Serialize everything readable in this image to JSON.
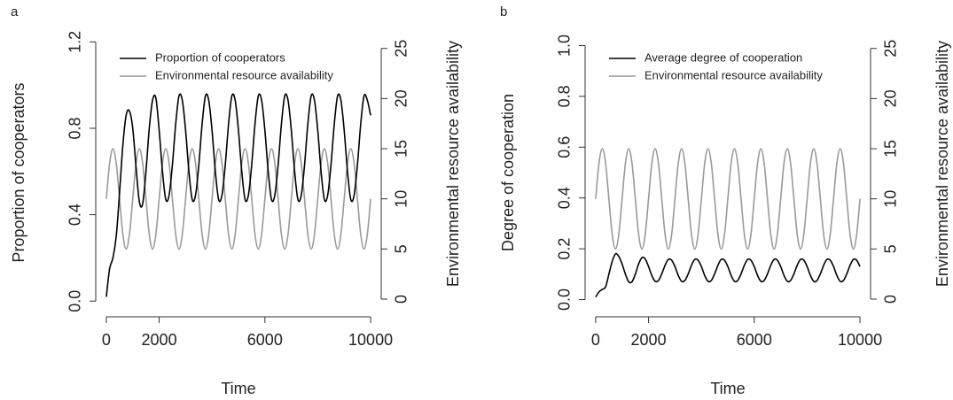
{
  "chart_data": [
    {
      "type": "line",
      "panel_label": "a",
      "xlabel": "Time",
      "ylabel": "Proportion of cooperators",
      "y2label": "Environmental resource availability",
      "xlim": [
        -400,
        10400
      ],
      "xticks": [
        0,
        2000,
        6000,
        10000
      ],
      "ylim": [
        -0.04,
        1.23
      ],
      "yticks": [
        {
          "value": 0,
          "label": "0.0"
        },
        0.4,
        0.8,
        1.2
      ],
      "y2lim": [
        -1.06,
        26.3
      ],
      "y2ticks": [
        0,
        5,
        10,
        15,
        20,
        25
      ],
      "legend": "top-left",
      "x": [
        0,
        125,
        250,
        375,
        500,
        625,
        750,
        875,
        1000,
        1125,
        1250,
        1375,
        1500,
        1625,
        1750,
        1875,
        2000,
        2125,
        2250,
        2375,
        2500,
        2625,
        2750,
        2875,
        3000,
        3125,
        3250,
        3375,
        3500,
        3625,
        3750,
        3875,
        4000,
        4125,
        4250,
        4375,
        4500,
        4625,
        4750,
        4875,
        5000,
        5125,
        5250,
        5375,
        5500,
        5625,
        5750,
        5875,
        6000,
        6125,
        6250,
        6375,
        6500,
        6625,
        6750,
        6875,
        7000,
        7125,
        7250,
        7375,
        7500,
        7625,
        7750,
        7875,
        8000,
        8125,
        8250,
        8375,
        8500,
        8625,
        8750,
        8875,
        9000,
        9125,
        9250,
        9375,
        9500,
        9625,
        9750,
        9875,
        10000
      ],
      "series": [
        {
          "name": "Proportion of cooperators",
          "color": "#000000",
          "values": [
            0.02,
            0.15,
            0.2,
            0.3,
            0.5,
            0.72,
            0.86,
            0.88,
            0.8,
            0.62,
            0.46,
            0.45,
            0.6,
            0.8,
            0.93,
            0.94,
            0.79,
            0.6,
            0.47,
            0.49,
            0.63,
            0.82,
            0.95,
            0.93,
            0.79,
            0.6,
            0.47,
            0.49,
            0.63,
            0.82,
            0.95,
            0.93,
            0.79,
            0.6,
            0.47,
            0.49,
            0.63,
            0.82,
            0.95,
            0.93,
            0.79,
            0.6,
            0.47,
            0.49,
            0.63,
            0.82,
            0.95,
            0.93,
            0.79,
            0.6,
            0.47,
            0.49,
            0.63,
            0.82,
            0.95,
            0.93,
            0.79,
            0.6,
            0.47,
            0.49,
            0.63,
            0.82,
            0.95,
            0.93,
            0.79,
            0.6,
            0.47,
            0.49,
            0.63,
            0.82,
            0.95,
            0.93,
            0.79,
            0.6,
            0.47,
            0.49,
            0.63,
            0.82,
            0.95,
            0.93,
            0.86
          ]
        },
        {
          "name": "Environmental resource availability",
          "color": "#999999",
          "axis": "y2",
          "values": [
            10,
            13.54,
            15,
            13.54,
            10,
            6.46,
            5,
            6.46,
            10,
            13.54,
            15,
            13.54,
            10,
            6.46,
            5,
            6.46,
            10,
            13.54,
            15,
            13.54,
            10,
            6.46,
            5,
            6.46,
            10,
            13.54,
            15,
            13.54,
            10,
            6.46,
            5,
            6.46,
            10,
            13.54,
            15,
            13.54,
            10,
            6.46,
            5,
            6.46,
            10,
            13.54,
            15,
            13.54,
            10,
            6.46,
            5,
            6.46,
            10,
            13.54,
            15,
            13.54,
            10,
            6.46,
            5,
            6.46,
            10,
            13.54,
            15,
            13.54,
            10,
            6.46,
            5,
            6.46,
            10,
            13.54,
            15,
            13.54,
            10,
            6.46,
            5,
            6.46,
            10,
            13.54,
            15,
            13.54,
            10,
            6.46,
            5,
            6.46,
            10
          ]
        }
      ]
    },
    {
      "type": "line",
      "panel_label": "b",
      "xlabel": "Time",
      "ylabel": "Degree of cooperation",
      "y2label": "Environmental resource availability",
      "xlim": [
        -400,
        10400
      ],
      "xticks": [
        0,
        2000,
        6000,
        10000
      ],
      "ylim": [
        -0.04,
        1.04
      ],
      "yticks": [
        {
          "value": 0,
          "label": "0.0"
        },
        0.2,
        0.4,
        0.6,
        0.8,
        {
          "value": 1,
          "label": "1.0"
        }
      ],
      "y2lim": [
        -1.06,
        26.3
      ],
      "y2ticks": [
        0,
        5,
        10,
        15,
        20,
        25
      ],
      "legend": "top-left",
      "x": [
        0,
        125,
        250,
        375,
        500,
        625,
        750,
        875,
        1000,
        1125,
        1250,
        1375,
        1500,
        1625,
        1750,
        1875,
        2000,
        2125,
        2250,
        2375,
        2500,
        2625,
        2750,
        2875,
        3000,
        3125,
        3250,
        3375,
        3500,
        3625,
        3750,
        3875,
        4000,
        4125,
        4250,
        4375,
        4500,
        4625,
        4750,
        4875,
        5000,
        5125,
        5250,
        5375,
        5500,
        5625,
        5750,
        5875,
        6000,
        6125,
        6250,
        6375,
        6500,
        6625,
        6750,
        6875,
        7000,
        7125,
        7250,
        7375,
        7500,
        7625,
        7750,
        7875,
        8000,
        8125,
        8250,
        8375,
        8500,
        8625,
        8750,
        8875,
        9000,
        9125,
        9250,
        9375,
        9500,
        9625,
        9750,
        9875,
        10000
      ],
      "series": [
        {
          "name": "Average degree of cooperation",
          "color": "#000000",
          "values": [
            0.01,
            0.03,
            0.04,
            0.05,
            0.1,
            0.15,
            0.18,
            0.17,
            0.14,
            0.1,
            0.07,
            0.07,
            0.1,
            0.14,
            0.165,
            0.16,
            0.13,
            0.095,
            0.072,
            0.075,
            0.101,
            0.135,
            0.158,
            0.155,
            0.13,
            0.095,
            0.072,
            0.075,
            0.101,
            0.135,
            0.158,
            0.155,
            0.13,
            0.095,
            0.072,
            0.075,
            0.101,
            0.135,
            0.158,
            0.155,
            0.13,
            0.095,
            0.072,
            0.075,
            0.101,
            0.135,
            0.158,
            0.155,
            0.13,
            0.095,
            0.072,
            0.075,
            0.101,
            0.135,
            0.158,
            0.155,
            0.13,
            0.095,
            0.072,
            0.075,
            0.101,
            0.135,
            0.158,
            0.155,
            0.13,
            0.095,
            0.072,
            0.075,
            0.101,
            0.135,
            0.158,
            0.155,
            0.13,
            0.095,
            0.072,
            0.075,
            0.101,
            0.135,
            0.158,
            0.155,
            0.13
          ]
        },
        {
          "name": "Environmental resource availability",
          "color": "#999999",
          "axis": "y2",
          "values": [
            10,
            13.54,
            15,
            13.54,
            10,
            6.46,
            5,
            6.46,
            10,
            13.54,
            15,
            13.54,
            10,
            6.46,
            5,
            6.46,
            10,
            13.54,
            15,
            13.54,
            10,
            6.46,
            5,
            6.46,
            10,
            13.54,
            15,
            13.54,
            10,
            6.46,
            5,
            6.46,
            10,
            13.54,
            15,
            13.54,
            10,
            6.46,
            5,
            6.46,
            10,
            13.54,
            15,
            13.54,
            10,
            6.46,
            5,
            6.46,
            10,
            13.54,
            15,
            13.54,
            10,
            6.46,
            5,
            6.46,
            10,
            13.54,
            15,
            13.54,
            10,
            6.46,
            5,
            6.46,
            10,
            13.54,
            15,
            13.54,
            10,
            6.46,
            5,
            6.46,
            10,
            13.54,
            15,
            13.54,
            10,
            6.46,
            5,
            6.46,
            10
          ]
        }
      ]
    }
  ]
}
